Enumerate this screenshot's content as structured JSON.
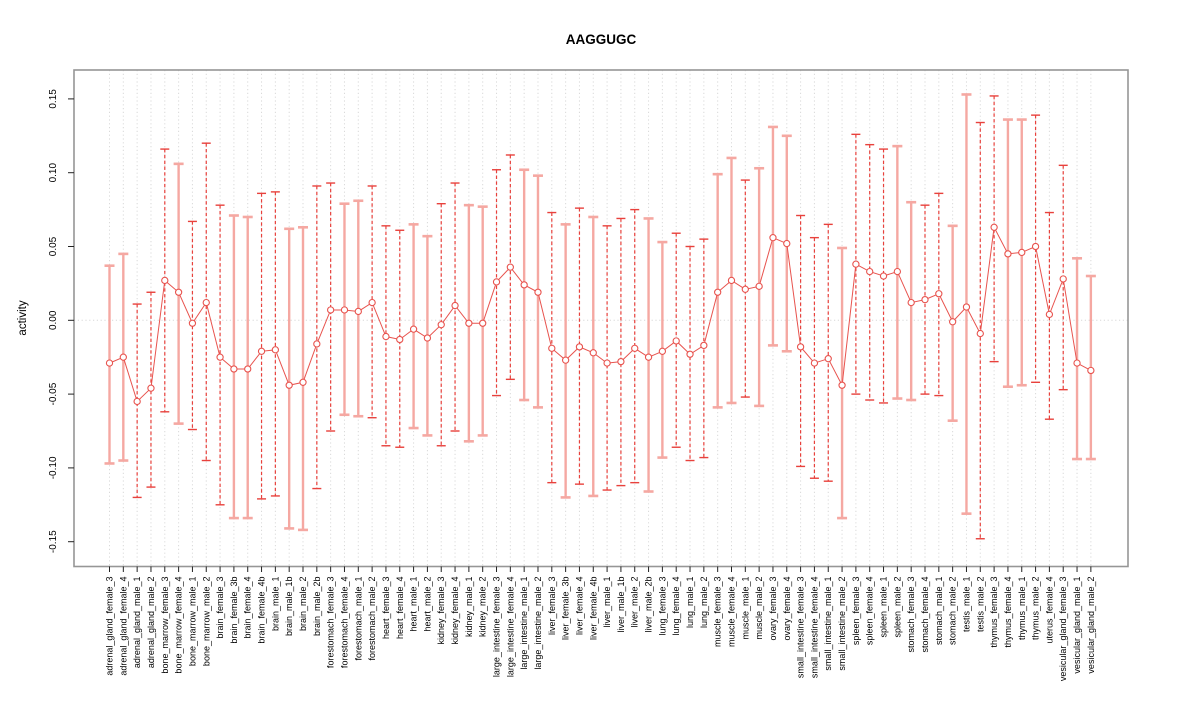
{
  "page": {
    "background": "#ffffff"
  },
  "chart_data": {
    "type": "line",
    "subtype": "errorbar-ci-plot",
    "title": "AAGGUGC",
    "ylabel": "activity",
    "xlabel": "",
    "ylim": [
      -0.167,
      0.169
    ],
    "yticks": [
      "-0.15",
      "-0.10",
      "-0.05",
      "0.00",
      "0.05",
      "0.10",
      "0.15"
    ],
    "grid": "dotted vertical line per category; dotted horizontal line at y=0",
    "legend": "none",
    "colors": {
      "point": "#e8534e",
      "series_line": "#e8534e",
      "bar_dashed": "#e8413c",
      "bar_solid": "#f5a8a2",
      "gridline": "#d9d9d9",
      "zero_line": "#d8d8d8",
      "box_border": "#969696",
      "text": "#000000"
    },
    "categories": [
      "adrenal_gland_female_3",
      "adrenal_gland_female_4",
      "adrenal_gland_male_1",
      "adrenal_gland_male_2",
      "bone_marrow_female_3",
      "bone_marrow_female_4",
      "bone_marrow_male_1",
      "bone_marrow_male_2",
      "brain_female_3",
      "brain_female_3b",
      "brain_female_4",
      "brain_female_4b",
      "brain_male_1",
      "brain_male_1b",
      "brain_male_2",
      "brain_male_2b",
      "forestomach_female_3",
      "forestomach_female_4",
      "forestomach_male_1",
      "forestomach_male_2",
      "heart_female_3",
      "heart_female_4",
      "heart_male_1",
      "heart_male_2",
      "kidney_female_3",
      "kidney_female_4",
      "kidney_male_1",
      "kidney_male_2",
      "large_intestine_female_3",
      "large_intestine_female_4",
      "large_intestine_male_1",
      "large_intestine_male_2",
      "liver_female_3",
      "liver_female_3b",
      "liver_female_4",
      "liver_female_4b",
      "liver_male_1",
      "liver_male_1b",
      "liver_male_2",
      "liver_male_2b",
      "lung_female_3",
      "lung_female_4",
      "lung_male_1",
      "lung_male_2",
      "muscle_female_3",
      "muscle_female_4",
      "muscle_male_1",
      "muscle_male_2",
      "ovary_female_3",
      "ovary_female_4",
      "small_intestine_female_3",
      "small_intestine_female_4",
      "small_intestine_male_1",
      "small_intestine_male_2",
      "spleen_female_3",
      "spleen_female_4",
      "spleen_male_1",
      "spleen_male_2",
      "stomach_female_3",
      "stomach_female_4",
      "stomach_male_1",
      "stomach_male_2",
      "testis_male_1",
      "testis_male_2",
      "thymus_female_3",
      "thymus_female_4",
      "thymus_male_1",
      "thymus_male_2",
      "uterus_female_4",
      "vesicular_gland_female_3",
      "vesicular_gland_male_1",
      "vesicular_gland_male_2"
    ],
    "points": [
      {
        "value": -0.029,
        "lo": -0.097,
        "hi": 0.037,
        "style": "solid"
      },
      {
        "value": -0.025,
        "lo": -0.095,
        "hi": 0.045,
        "style": "solid"
      },
      {
        "value": -0.055,
        "lo": -0.12,
        "hi": 0.011,
        "style": "dashed"
      },
      {
        "value": -0.046,
        "lo": -0.113,
        "hi": 0.019,
        "style": "dashed"
      },
      {
        "value": 0.027,
        "lo": -0.062,
        "hi": 0.116,
        "style": "dashed"
      },
      {
        "value": 0.019,
        "lo": -0.07,
        "hi": 0.106,
        "style": "solid"
      },
      {
        "value": -0.002,
        "lo": -0.074,
        "hi": 0.067,
        "style": "dashed"
      },
      {
        "value": 0.012,
        "lo": -0.095,
        "hi": 0.12,
        "style": "dashed"
      },
      {
        "value": -0.025,
        "lo": -0.125,
        "hi": 0.078,
        "style": "dashed"
      },
      {
        "value": -0.033,
        "lo": -0.134,
        "hi": 0.071,
        "style": "solid"
      },
      {
        "value": -0.033,
        "lo": -0.134,
        "hi": 0.07,
        "style": "solid"
      },
      {
        "value": -0.021,
        "lo": -0.121,
        "hi": 0.086,
        "style": "dashed"
      },
      {
        "value": -0.02,
        "lo": -0.119,
        "hi": 0.087,
        "style": "dashed"
      },
      {
        "value": -0.044,
        "lo": -0.141,
        "hi": 0.062,
        "style": "solid"
      },
      {
        "value": -0.042,
        "lo": -0.142,
        "hi": 0.063,
        "style": "solid"
      },
      {
        "value": -0.016,
        "lo": -0.114,
        "hi": 0.091,
        "style": "dashed"
      },
      {
        "value": 0.007,
        "lo": -0.075,
        "hi": 0.093,
        "style": "dashed"
      },
      {
        "value": 0.007,
        "lo": -0.064,
        "hi": 0.079,
        "style": "solid"
      },
      {
        "value": 0.006,
        "lo": -0.065,
        "hi": 0.081,
        "style": "solid"
      },
      {
        "value": 0.012,
        "lo": -0.066,
        "hi": 0.091,
        "style": "dashed"
      },
      {
        "value": -0.011,
        "lo": -0.085,
        "hi": 0.064,
        "style": "dashed"
      },
      {
        "value": -0.013,
        "lo": -0.086,
        "hi": 0.061,
        "style": "dashed"
      },
      {
        "value": -0.006,
        "lo": -0.073,
        "hi": 0.065,
        "style": "solid"
      },
      {
        "value": -0.012,
        "lo": -0.078,
        "hi": 0.057,
        "style": "solid"
      },
      {
        "value": -0.003,
        "lo": -0.085,
        "hi": 0.079,
        "style": "dashed"
      },
      {
        "value": 0.01,
        "lo": -0.075,
        "hi": 0.093,
        "style": "dashed"
      },
      {
        "value": -0.002,
        "lo": -0.082,
        "hi": 0.078,
        "style": "solid"
      },
      {
        "value": -0.002,
        "lo": -0.078,
        "hi": 0.077,
        "style": "solid"
      },
      {
        "value": 0.026,
        "lo": -0.051,
        "hi": 0.102,
        "style": "dashed"
      },
      {
        "value": 0.036,
        "lo": -0.04,
        "hi": 0.112,
        "style": "dashed"
      },
      {
        "value": 0.024,
        "lo": -0.054,
        "hi": 0.102,
        "style": "solid"
      },
      {
        "value": 0.019,
        "lo": -0.059,
        "hi": 0.098,
        "style": "solid"
      },
      {
        "value": -0.019,
        "lo": -0.11,
        "hi": 0.073,
        "style": "dashed"
      },
      {
        "value": -0.027,
        "lo": -0.12,
        "hi": 0.065,
        "style": "solid"
      },
      {
        "value": -0.018,
        "lo": -0.111,
        "hi": 0.076,
        "style": "dashed"
      },
      {
        "value": -0.022,
        "lo": -0.119,
        "hi": 0.07,
        "style": "solid"
      },
      {
        "value": -0.029,
        "lo": -0.115,
        "hi": 0.064,
        "style": "dashed"
      },
      {
        "value": -0.028,
        "lo": -0.112,
        "hi": 0.069,
        "style": "dashed"
      },
      {
        "value": -0.019,
        "lo": -0.11,
        "hi": 0.075,
        "style": "dashed"
      },
      {
        "value": -0.025,
        "lo": -0.116,
        "hi": 0.069,
        "style": "solid"
      },
      {
        "value": -0.021,
        "lo": -0.093,
        "hi": 0.053,
        "style": "solid"
      },
      {
        "value": -0.014,
        "lo": -0.086,
        "hi": 0.059,
        "style": "dashed"
      },
      {
        "value": -0.023,
        "lo": -0.095,
        "hi": 0.05,
        "style": "dashed"
      },
      {
        "value": -0.017,
        "lo": -0.093,
        "hi": 0.055,
        "style": "dashed"
      },
      {
        "value": 0.019,
        "lo": -0.059,
        "hi": 0.099,
        "style": "solid"
      },
      {
        "value": 0.027,
        "lo": -0.056,
        "hi": 0.11,
        "style": "solid"
      },
      {
        "value": 0.021,
        "lo": -0.052,
        "hi": 0.095,
        "style": "dashed"
      },
      {
        "value": 0.023,
        "lo": -0.058,
        "hi": 0.103,
        "style": "solid"
      },
      {
        "value": 0.056,
        "lo": -0.017,
        "hi": 0.131,
        "style": "solid"
      },
      {
        "value": 0.052,
        "lo": -0.021,
        "hi": 0.125,
        "style": "solid"
      },
      {
        "value": -0.018,
        "lo": -0.099,
        "hi": 0.071,
        "style": "dashed"
      },
      {
        "value": -0.029,
        "lo": -0.107,
        "hi": 0.056,
        "style": "dashed"
      },
      {
        "value": -0.026,
        "lo": -0.109,
        "hi": 0.065,
        "style": "dashed"
      },
      {
        "value": -0.044,
        "lo": -0.134,
        "hi": 0.049,
        "style": "solid"
      },
      {
        "value": 0.038,
        "lo": -0.05,
        "hi": 0.126,
        "style": "dashed"
      },
      {
        "value": 0.033,
        "lo": -0.054,
        "hi": 0.119,
        "style": "dashed"
      },
      {
        "value": 0.03,
        "lo": -0.056,
        "hi": 0.116,
        "style": "dashed"
      },
      {
        "value": 0.033,
        "lo": -0.053,
        "hi": 0.118,
        "style": "solid"
      },
      {
        "value": 0.012,
        "lo": -0.054,
        "hi": 0.08,
        "style": "solid"
      },
      {
        "value": 0.014,
        "lo": -0.05,
        "hi": 0.078,
        "style": "dashed"
      },
      {
        "value": 0.018,
        "lo": -0.051,
        "hi": 0.086,
        "style": "dashed"
      },
      {
        "value": -0.001,
        "lo": -0.068,
        "hi": 0.064,
        "style": "solid"
      },
      {
        "value": 0.009,
        "lo": -0.131,
        "hi": 0.153,
        "style": "solid"
      },
      {
        "value": -0.009,
        "lo": -0.148,
        "hi": 0.134,
        "style": "dashed"
      },
      {
        "value": 0.063,
        "lo": -0.028,
        "hi": 0.152,
        "style": "dashed"
      },
      {
        "value": 0.045,
        "lo": -0.045,
        "hi": 0.136,
        "style": "solid"
      },
      {
        "value": 0.046,
        "lo": -0.044,
        "hi": 0.136,
        "style": "solid"
      },
      {
        "value": 0.05,
        "lo": -0.042,
        "hi": 0.139,
        "style": "dashed"
      },
      {
        "value": 0.004,
        "lo": -0.067,
        "hi": 0.073,
        "style": "dashed"
      },
      {
        "value": 0.028,
        "lo": -0.047,
        "hi": 0.105,
        "style": "dashed"
      },
      {
        "value": -0.029,
        "lo": -0.094,
        "hi": 0.042,
        "style": "solid"
      },
      {
        "value": -0.034,
        "lo": -0.094,
        "hi": 0.03,
        "style": "solid"
      }
    ]
  }
}
